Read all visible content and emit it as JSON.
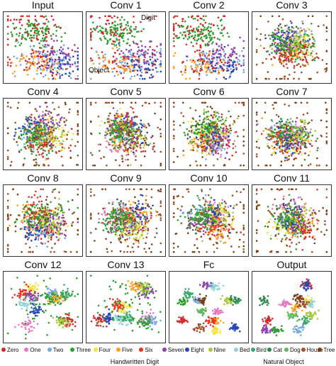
{
  "panels": [
    {
      "title": "Input"
    },
    {
      "title": "Conv 1",
      "annotations": [
        "Digit",
        "Object"
      ]
    },
    {
      "title": "Conv 2"
    },
    {
      "title": "Conv 3"
    },
    {
      "title": "Conv 4"
    },
    {
      "title": "Conv 5"
    },
    {
      "title": "Conv 6"
    },
    {
      "title": "Conv 7"
    },
    {
      "title": "Conv 8"
    },
    {
      "title": "Conv 9"
    },
    {
      "title": "Conv 10"
    },
    {
      "title": "Conv 11"
    },
    {
      "title": "Conv 12"
    },
    {
      "title": "Conv 13"
    },
    {
      "title": "Fc"
    },
    {
      "title": "Output"
    }
  ],
  "legend": {
    "digit_classes": [
      {
        "label": "Zero",
        "color": "#d62728"
      },
      {
        "label": "One",
        "color": "#e377c2"
      },
      {
        "label": "Two",
        "color": "#74a9e0"
      },
      {
        "label": "Three",
        "color": "#2ca02c"
      },
      {
        "label": "Four",
        "color": "#f2e43a"
      },
      {
        "label": "Five",
        "color": "#ff9f1c"
      },
      {
        "label": "Six",
        "color": "#e8321e"
      },
      {
        "label": "Seven",
        "color": "#8e3fb0"
      },
      {
        "label": "Eight",
        "color": "#2546b8"
      },
      {
        "label": "Nine",
        "color": "#a6c83a"
      }
    ],
    "object_classes": [
      {
        "label": "Bed",
        "color": "#8fd3d8"
      },
      {
        "label": "Bird",
        "color": "#3aa86a"
      },
      {
        "label": "Cat",
        "color": "#2d8a4e"
      },
      {
        "label": "Dog",
        "color": "#5cb85c"
      },
      {
        "label": "House",
        "color": "#a0522d"
      },
      {
        "label": "Tree",
        "color": "#7b3f10"
      }
    ],
    "digit_group_label": "Handwritten Digit",
    "object_group_label": "Natural Object"
  }
}
